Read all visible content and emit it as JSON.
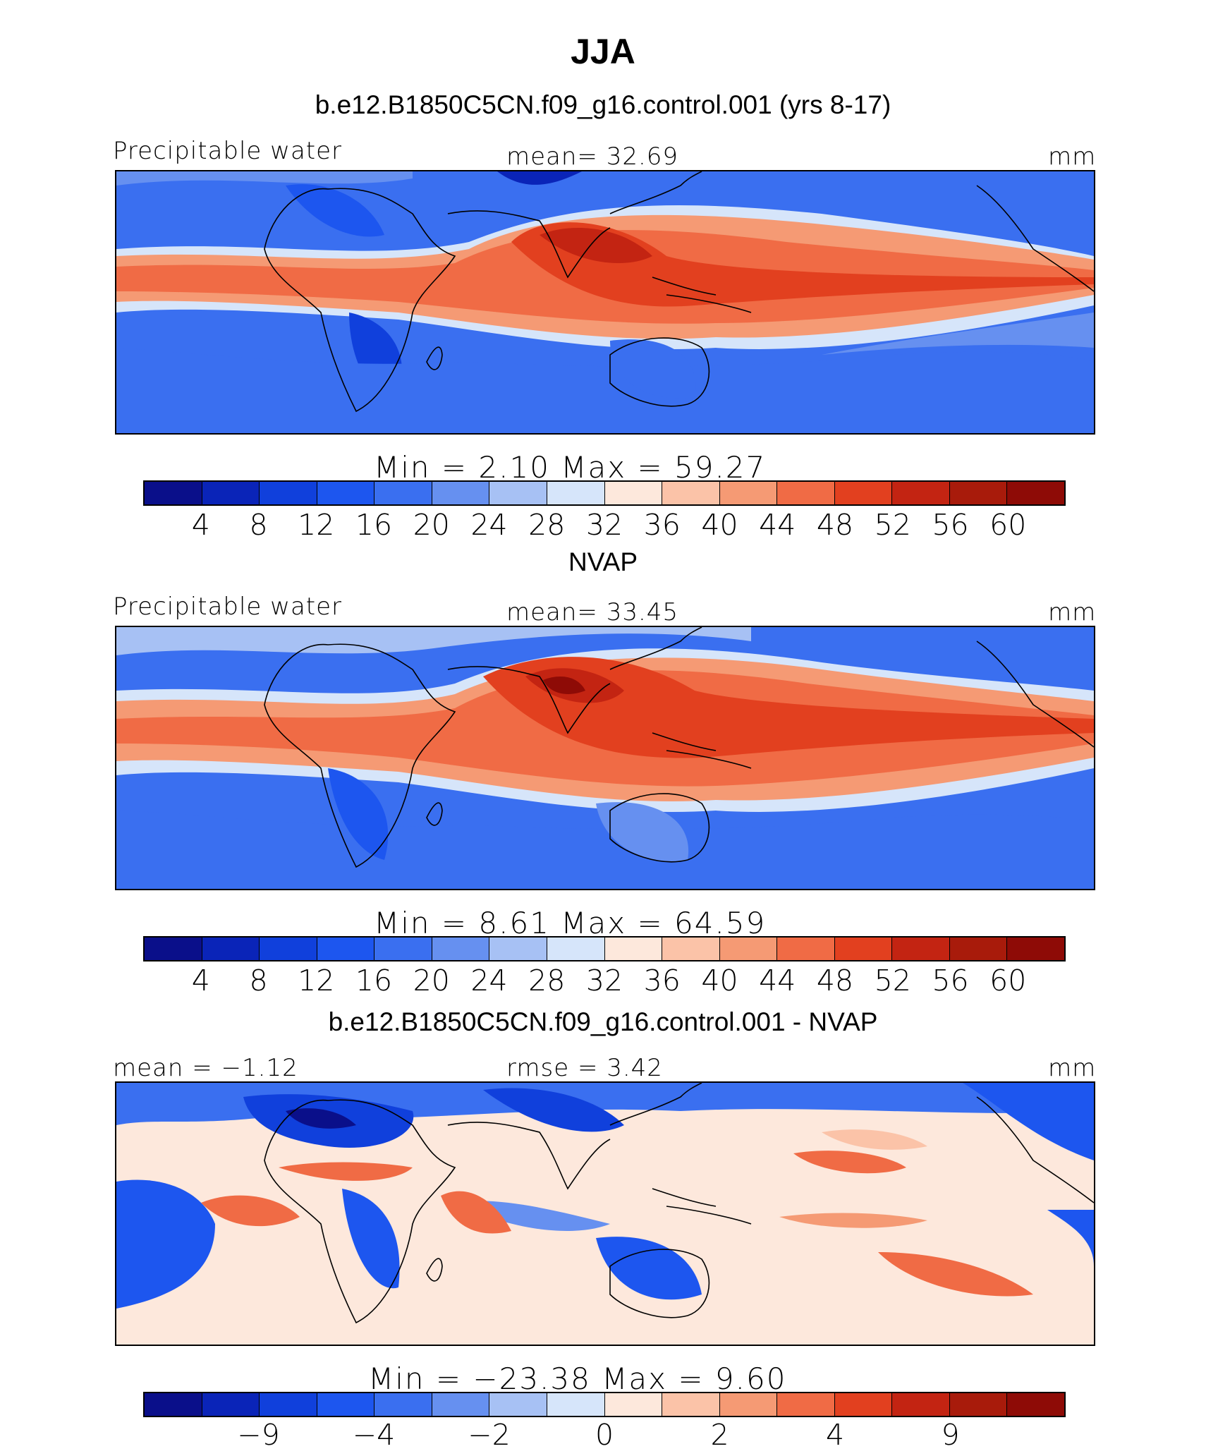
{
  "title": "JJA",
  "colors": [
    "#0a0f8a",
    "#0a24b8",
    "#1040dc",
    "#1d56ef",
    "#3a6ff0",
    "#6690f0",
    "#a7c1f4",
    "#d6e5fa",
    "#fde8dc",
    "#fbc3a8",
    "#f59a74",
    "#f06b45",
    "#e2401f",
    "#c32412",
    "#a81b0b",
    "#8e0b06"
  ],
  "panels": [
    {
      "subtitle": "b.e12.B1850C5CN.f09_g16.control.001 (yrs 8-17)",
      "left_label": "Precipitable  water",
      "center_label": "mean=   32.69",
      "units": "mm",
      "minmax": "Min  =     2.10  Max  =    59.27",
      "ticks": [
        "4",
        "8",
        "12",
        "16",
        "20",
        "24",
        "28",
        "32",
        "36",
        "40",
        "44",
        "48",
        "52",
        "56",
        "60"
      ]
    },
    {
      "subtitle": "NVAP",
      "left_label": "Precipitable  water",
      "center_label": "mean=   33.45",
      "units": "mm",
      "minmax": "Min  =     8.61  Max  =    64.59",
      "ticks": [
        "4",
        "8",
        "12",
        "16",
        "20",
        "24",
        "28",
        "32",
        "36",
        "40",
        "44",
        "48",
        "52",
        "56",
        "60"
      ]
    },
    {
      "subtitle": "b.e12.B1850C5CN.f09_g16.control.001 - NVAP",
      "left_label": "mean  =   −1.12",
      "center_label": "rmse  =      3.42",
      "units": "mm",
      "minmax": "Min  =  −23.38  Max  =     9.60",
      "ticks": [
        "−9",
        "−4",
        "−2",
        "0",
        "2",
        "4",
        "9"
      ]
    }
  ],
  "chart_data": [
    {
      "type": "heatmap",
      "title": "JJA",
      "subtitle": "b.e12.B1850C5CN.f09_g16.control.001 (yrs 8-17)",
      "variable": "Precipitable water",
      "units": "mm",
      "mean": 32.69,
      "min": 2.1,
      "max": 59.27,
      "contour_levels": [
        4,
        8,
        12,
        16,
        20,
        24,
        28,
        32,
        36,
        40,
        44,
        48,
        52,
        56,
        60
      ]
    },
    {
      "type": "heatmap",
      "subtitle": "NVAP",
      "variable": "Precipitable water",
      "units": "mm",
      "mean": 33.45,
      "min": 8.61,
      "max": 64.59,
      "contour_levels": [
        4,
        8,
        12,
        16,
        20,
        24,
        28,
        32,
        36,
        40,
        44,
        48,
        52,
        56,
        60
      ]
    },
    {
      "type": "heatmap",
      "subtitle": "b.e12.B1850C5CN.f09_g16.control.001 - NVAP",
      "units": "mm",
      "mean": -1.12,
      "rmse": 3.42,
      "min": -23.38,
      "max": 9.6,
      "labeled_levels": [
        -9,
        -4,
        -2,
        0,
        2,
        4,
        9
      ]
    }
  ]
}
